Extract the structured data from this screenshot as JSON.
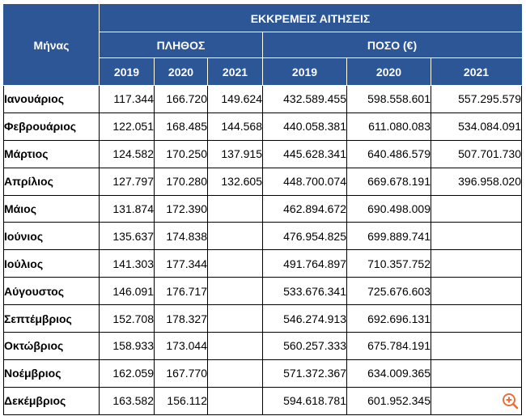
{
  "header": {
    "month_label": "Μήνας",
    "group_title": "ΕΚΚΡΕΜΕΙΣ ΑΙΤΗΣΕΙΣ",
    "count_label": "ΠΛΗΘΟΣ",
    "amount_label": "ΠΟΣΟ (€)",
    "years": [
      "2019",
      "2020",
      "2021"
    ]
  },
  "rows": [
    {
      "month": "Ιανουάριος",
      "count": [
        "117.344",
        "166.720",
        "149.624"
      ],
      "amount": [
        "432.589.455",
        "598.558.601",
        "557.295.579"
      ]
    },
    {
      "month": "Φεβρουάριος",
      "count": [
        "122.051",
        "168.485",
        "144.568"
      ],
      "amount": [
        "440.058.381",
        "611.080.083",
        "534.084.091"
      ]
    },
    {
      "month": "Μάρτιος",
      "count": [
        "124.582",
        "170.250",
        "137.915"
      ],
      "amount": [
        "445.628.341",
        "640.486.579",
        "507.701.730"
      ]
    },
    {
      "month": "Απρίλιος",
      "count": [
        "127.797",
        "170.280",
        "132.605"
      ],
      "amount": [
        "448.700.074",
        "669.678.191",
        "396.958.020"
      ]
    },
    {
      "month": "Μάιος",
      "count": [
        "131.874",
        "172.390",
        ""
      ],
      "amount": [
        "462.894.672",
        "690.498.009",
        ""
      ]
    },
    {
      "month": "Ιούνιος",
      "count": [
        "135.637",
        "174.838",
        ""
      ],
      "amount": [
        "476.954.825",
        "699.889.741",
        ""
      ]
    },
    {
      "month": "Ιούλιος",
      "count": [
        "141.303",
        "177.344",
        ""
      ],
      "amount": [
        "491.764.897",
        "710.357.752",
        ""
      ]
    },
    {
      "month": "Αύγουστος",
      "count": [
        "146.091",
        "176.717",
        ""
      ],
      "amount": [
        "533.676.341",
        "725.676.603",
        ""
      ]
    },
    {
      "month": "Σεπτέμβριος",
      "count": [
        "152.708",
        "178.327",
        ""
      ],
      "amount": [
        "546.274.913",
        "692.696.131",
        ""
      ]
    },
    {
      "month": "Οκτώβριος",
      "count": [
        "158.933",
        "173.044",
        ""
      ],
      "amount": [
        "560.257.333",
        "675.784.191",
        ""
      ]
    },
    {
      "month": "Νοέμβριος",
      "count": [
        "162.059",
        "167.770",
        ""
      ],
      "amount": [
        "571.372.367",
        "634.009.365",
        ""
      ]
    },
    {
      "month": "Δεκέμβριος",
      "count": [
        "163.582",
        "156.112",
        ""
      ],
      "amount": [
        "594.618.781",
        "601.952.345",
        ""
      ]
    }
  ],
  "colors": {
    "header_bg": "#2d5696",
    "header_text": "#ffffff",
    "watermark": "#e8703a"
  },
  "watermark_icon": "zoom-in-icon"
}
